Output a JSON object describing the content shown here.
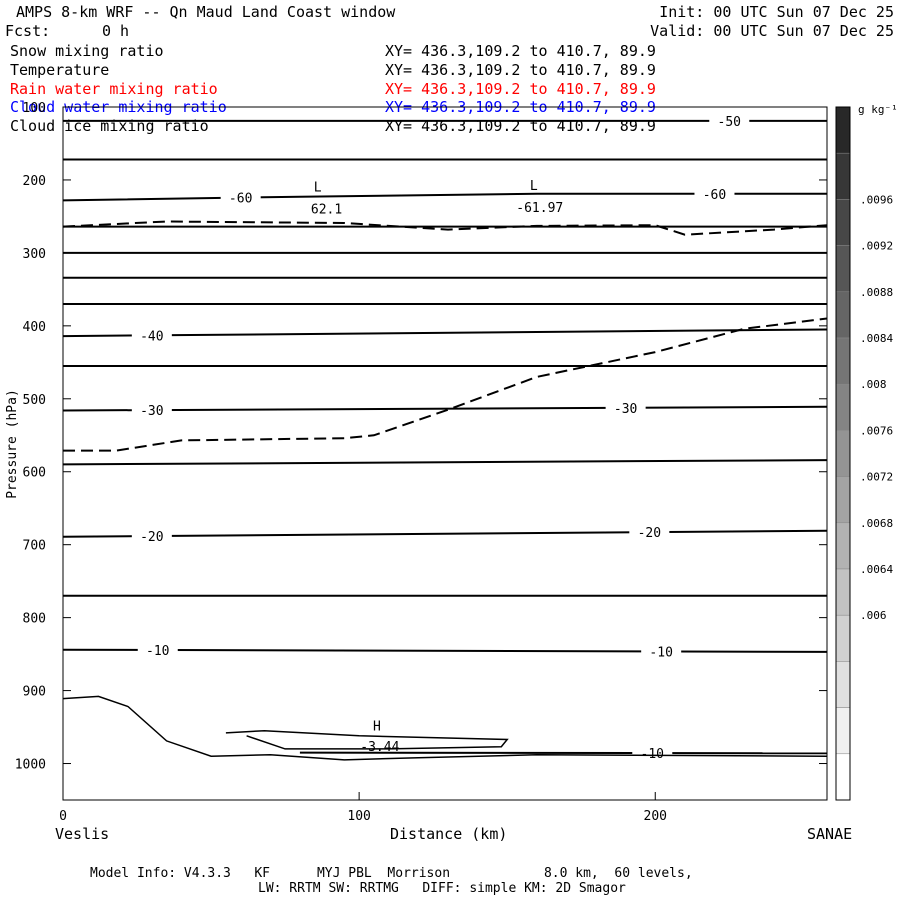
{
  "header": {
    "title": "AMPS 8-km WRF -- Qn Maud Land Coast window",
    "fcst_label": "Fcst:",
    "fcst_value": "0 h",
    "init": "Init: 00 UTC Sun 07 Dec 25",
    "valid": "Valid: 00 UTC Sun 07 Dec 25"
  },
  "fields": [
    {
      "name": "Snow mixing ratio",
      "xy": "XY= 436.3,109.2 to 410.7, 89.9",
      "color": "#000000"
    },
    {
      "name": "Temperature",
      "xy": "XY= 436.3,109.2 to 410.7, 89.9",
      "color": "#000000"
    },
    {
      "name": "Rain water mixing ratio",
      "xy": "XY= 436.3,109.2 to 410.7, 89.9",
      "color": "#ff0000"
    },
    {
      "name": "Cloud water mixing ratio",
      "xy": "XY= 436.3,109.2 to 410.7, 89.9",
      "color": "#0000ff"
    },
    {
      "name": "Cloud ice mixing ratio",
      "xy": "XY= 436.3,109.2 to 410.7, 89.9",
      "color": "#000000"
    }
  ],
  "footer": {
    "line1": "Model Info: V4.3.3   KF      MYJ PBL  Morrison            8.0 km,  60 levels,",
    "line2": "LW: RRTM SW: RRTMG   DIFF: simple KM: 2D Smagor"
  },
  "chart_data": {
    "type": "line",
    "xlabel": "Distance (km)",
    "ylabel": "Pressure (hPa)",
    "x_start_label": "Veslis",
    "x_end_label": "SANAE",
    "xlim": [
      0,
      258
    ],
    "ylim": [
      1050,
      100
    ],
    "x_ticks": [
      "0",
      "100",
      "200"
    ],
    "y_ticks": [
      "100",
      "200",
      "300",
      "400",
      "500",
      "600",
      "700",
      "800",
      "900",
      "1000"
    ],
    "colorbar": {
      "units": "g kg⁻¹",
      "ticks": [
        ".0096",
        ".0092",
        ".0088",
        ".0084",
        ".008",
        ".0076",
        ".0072",
        ".0068",
        ".0064",
        ".006"
      ]
    },
    "isotherms": [
      {
        "level": "-50",
        "points": [
          [
            0,
            119
          ],
          [
            258,
            119
          ]
        ]
      },
      {
        "level": "",
        "points": [
          [
            0,
            172
          ],
          [
            258,
            172
          ]
        ]
      },
      {
        "level": "-60",
        "points": [
          [
            0,
            228
          ],
          [
            80,
            223
          ],
          [
            160,
            219
          ],
          [
            258,
            219
          ]
        ]
      },
      {
        "level": "",
        "points": [
          [
            0,
            264
          ],
          [
            258,
            264
          ]
        ]
      },
      {
        "level": "",
        "points": [
          [
            0,
            300
          ],
          [
            258,
            300
          ]
        ]
      },
      {
        "level": "",
        "points": [
          [
            0,
            334
          ],
          [
            258,
            334
          ]
        ]
      },
      {
        "level": "",
        "points": [
          [
            0,
            370
          ],
          [
            258,
            370
          ]
        ]
      },
      {
        "level": "-40",
        "points": [
          [
            0,
            414
          ],
          [
            258,
            405
          ]
        ]
      },
      {
        "level": "",
        "points": [
          [
            0,
            455
          ],
          [
            258,
            455
          ]
        ]
      },
      {
        "level": "-30",
        "points": [
          [
            0,
            516
          ],
          [
            258,
            511
          ]
        ]
      },
      {
        "level": "",
        "points": [
          [
            0,
            590
          ],
          [
            258,
            584
          ]
        ]
      },
      {
        "level": "-20",
        "points": [
          [
            0,
            689
          ],
          [
            258,
            681
          ]
        ]
      },
      {
        "level": "",
        "points": [
          [
            0,
            770
          ],
          [
            258,
            770
          ]
        ]
      },
      {
        "level": "-10",
        "points": [
          [
            0,
            844
          ],
          [
            258,
            847
          ]
        ]
      },
      {
        "level": "-10",
        "points": [
          [
            80,
            985
          ],
          [
            258,
            986
          ]
        ]
      }
    ],
    "tropopause_dashed": [
      {
        "points": [
          [
            0,
            264
          ],
          [
            35,
            257
          ],
          [
            95,
            259
          ],
          [
            130,
            268
          ],
          [
            160,
            263
          ],
          [
            200,
            262
          ],
          [
            210,
            275
          ],
          [
            240,
            268
          ],
          [
            258,
            262
          ]
        ]
      },
      {
        "points": [
          [
            0,
            571
          ],
          [
            18,
            571
          ],
          [
            40,
            557
          ],
          [
            95,
            554
          ],
          [
            105,
            550
          ],
          [
            130,
            515
          ],
          [
            160,
            470
          ],
          [
            200,
            436
          ],
          [
            230,
            404
          ],
          [
            258,
            390
          ]
        ]
      }
    ],
    "ground_contours": [
      {
        "points": [
          [
            0,
            911
          ],
          [
            12,
            908
          ],
          [
            22,
            922
          ],
          [
            35,
            969
          ],
          [
            50,
            990
          ],
          [
            70,
            988
          ],
          [
            95,
            995
          ],
          [
            120,
            992
          ],
          [
            160,
            988
          ],
          [
            258,
            990
          ]
        ]
      },
      {
        "points": [
          [
            55,
            958
          ],
          [
            68,
            955
          ],
          [
            100,
            962
          ],
          [
            150,
            967
          ],
          [
            148,
            977
          ],
          [
            110,
            980
          ],
          [
            75,
            980
          ],
          [
            62,
            962
          ]
        ]
      }
    ],
    "annotations": [
      {
        "text": "L",
        "x": 86,
        "y": 216
      },
      {
        "text": "62.1",
        "x": 89,
        "y": 246
      },
      {
        "text": "L",
        "x": 159,
        "y": 214
      },
      {
        "text": "-61.97",
        "x": 161,
        "y": 244
      },
      {
        "text": "H",
        "x": 106,
        "y": 955
      },
      {
        "text": "-3.44",
        "x": 107,
        "y": 983
      }
    ]
  }
}
